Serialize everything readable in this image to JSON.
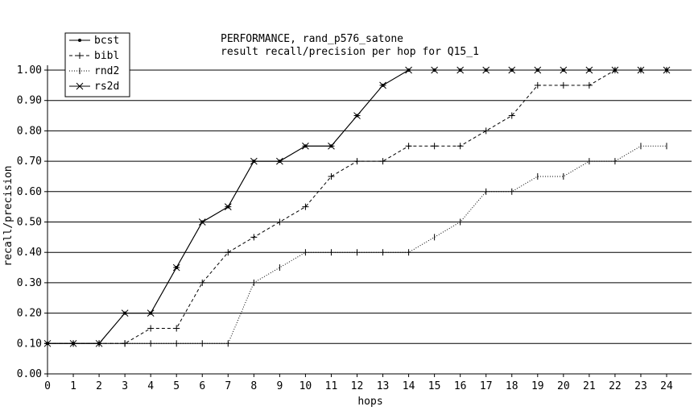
{
  "chart_data": {
    "type": "line",
    "title": "PERFORMANCE, rand_p576_satone",
    "subtitle": "result recall/precision per hop for Q15_1",
    "xlabel": "hops",
    "ylabel": "recall/precision",
    "xlim": [
      0,
      24
    ],
    "ylim": [
      0,
      1.0
    ],
    "x_ticks": [
      0,
      1,
      2,
      3,
      4,
      5,
      6,
      7,
      8,
      9,
      10,
      11,
      12,
      13,
      14,
      15,
      16,
      17,
      18,
      19,
      20,
      21,
      22,
      23,
      24
    ],
    "y_ticks": [
      0.0,
      0.1,
      0.2,
      0.3,
      0.4,
      0.5,
      0.6,
      0.7,
      0.8,
      0.9,
      1.0
    ],
    "y_tick_labels": [
      "0.00",
      "0.10",
      "0.20",
      "0.30",
      "0.40",
      "0.50",
      "0.60",
      "0.70",
      "0.80",
      "0.90",
      "1.00"
    ],
    "grid": "horizontal",
    "legend_position": "top-left",
    "x": [
      0,
      1,
      2,
      3,
      4,
      5,
      6,
      7,
      8,
      9,
      10,
      11,
      12,
      13,
      14,
      15,
      16,
      17,
      18,
      19,
      20,
      21,
      22,
      23,
      24
    ],
    "series": [
      {
        "name": "bcst",
        "marker": "dot",
        "dash": "solid",
        "values": [
          0.1,
          0.1,
          0.1,
          0.2,
          0.2,
          0.35,
          0.5,
          0.55,
          0.7,
          0.7,
          0.75,
          0.75,
          0.85,
          0.95,
          1.0,
          1.0,
          1.0,
          1.0,
          1.0,
          1.0,
          1.0,
          1.0,
          1.0,
          1.0,
          1.0
        ]
      },
      {
        "name": "bibl",
        "marker": "plus",
        "dash": "dashed",
        "values": [
          0.1,
          0.1,
          0.1,
          0.1,
          0.15,
          0.15,
          0.3,
          0.4,
          0.45,
          0.5,
          0.55,
          0.65,
          0.7,
          0.7,
          0.75,
          0.75,
          0.75,
          0.8,
          0.85,
          0.95,
          0.95,
          0.95,
          1.0,
          1.0,
          1.0
        ]
      },
      {
        "name": "rnd2",
        "marker": "vbar",
        "dash": "dotted",
        "values": [
          0.1,
          0.1,
          0.1,
          0.1,
          0.1,
          0.1,
          0.1,
          0.1,
          0.3,
          0.35,
          0.4,
          0.4,
          0.4,
          0.4,
          0.4,
          0.45,
          0.5,
          0.6,
          0.6,
          0.65,
          0.65,
          0.7,
          0.7,
          0.75,
          0.75
        ]
      },
      {
        "name": "rs2d",
        "marker": "star",
        "dash": "solid",
        "values": [
          0.1,
          0.1,
          0.1,
          0.2,
          0.2,
          0.35,
          0.5,
          0.55,
          0.7,
          0.7,
          0.75,
          0.75,
          0.85,
          0.95,
          1.0,
          1.0,
          1.0,
          1.0,
          1.0,
          1.0,
          1.0,
          1.0,
          1.0,
          1.0,
          1.0
        ]
      }
    ],
    "colors": {
      "line": "#000000",
      "grid": "#000000",
      "background": "#ffffff"
    }
  }
}
